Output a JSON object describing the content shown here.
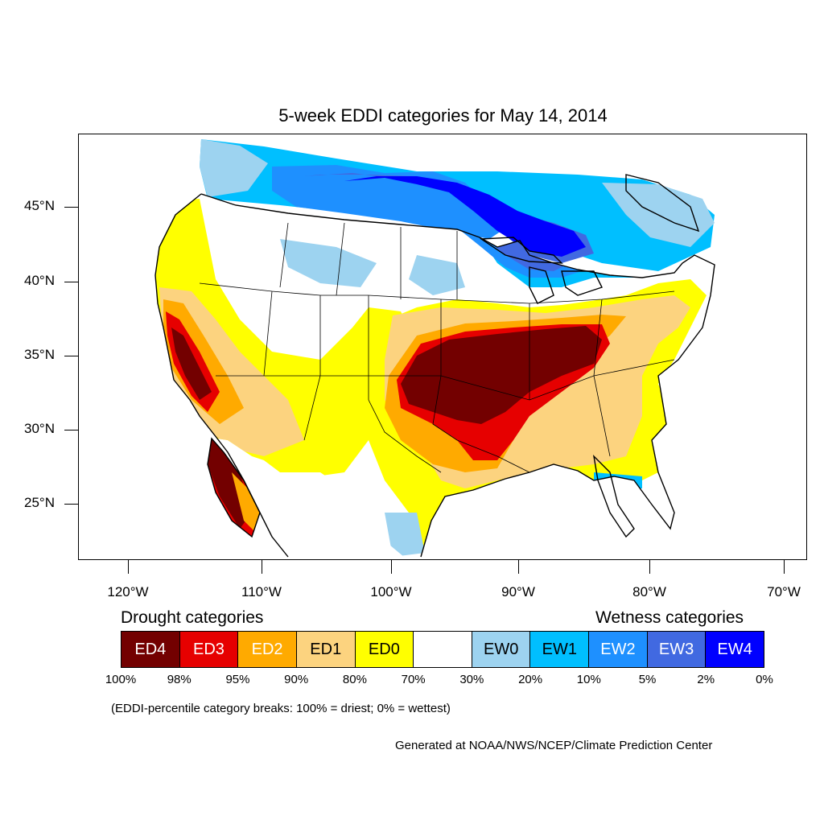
{
  "map": {
    "title": "5-week EDDI categories for May 14, 2014",
    "lat_labels": [
      "45°N",
      "40°N",
      "35°N",
      "30°N",
      "25°N"
    ],
    "lon_labels": [
      "120°W",
      "110°W",
      "100°W",
      "90°W",
      "80°W",
      "70°W"
    ]
  },
  "legend": {
    "drought_heading": "Drought categories",
    "wetness_heading": "Wetness categories",
    "categories": [
      {
        "label": "ED4",
        "color": "#730000",
        "text_color": "#ffffff"
      },
      {
        "label": "ED3",
        "color": "#e60000",
        "text_color": "#ffffff"
      },
      {
        "label": "ED2",
        "color": "#ffaa00",
        "text_color": "#ffffff"
      },
      {
        "label": "ED1",
        "color": "#fcd37f",
        "text_color": "#000000"
      },
      {
        "label": "ED0",
        "color": "#ffff00",
        "text_color": "#000000"
      },
      {
        "label": "",
        "color": "#ffffff",
        "text_color": "#000000"
      },
      {
        "label": "EW0",
        "color": "#9dd3f0",
        "text_color": "#000000"
      },
      {
        "label": "EW1",
        "color": "#00bfff",
        "text_color": "#000000"
      },
      {
        "label": "EW2",
        "color": "#1e90ff",
        "text_color": "#ffffff"
      },
      {
        "label": "EW3",
        "color": "#4169e1",
        "text_color": "#ffffff"
      },
      {
        "label": "EW4",
        "color": "#0000ff",
        "text_color": "#ffffff"
      }
    ],
    "percentiles": [
      "100%",
      "98%",
      "95%",
      "90%",
      "80%",
      "70%",
      "30%",
      "20%",
      "10%",
      "5%",
      "2%",
      "0%"
    ],
    "note": "(EDDI-percentile category breaks: 100% = driest; 0% = wettest)"
  },
  "credit": "Generated at NOAA/NWS/NCEP/Climate Prediction Center"
}
